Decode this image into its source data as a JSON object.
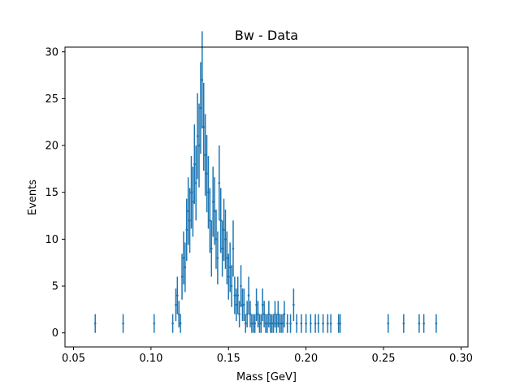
{
  "chart_data": {
    "type": "scatter",
    "title": "Bw - Data",
    "xlabel": "Mass [GeV]",
    "ylabel": "Events",
    "xlim": [
      0.0445,
      0.3045
    ],
    "ylim": [
      -1.5,
      30.5
    ],
    "xticks": [
      "0.05",
      "0.10",
      "0.15",
      "0.20",
      "0.25",
      "0.30"
    ],
    "xtick_values": [
      0.05,
      0.1,
      0.15,
      0.2,
      0.25,
      0.3
    ],
    "yticks": [
      "0",
      "5",
      "10",
      "15",
      "20",
      "25",
      "30"
    ],
    "ytick_values": [
      0,
      5,
      10,
      15,
      20,
      25,
      30
    ],
    "grid": false,
    "error_bars": "sqrt(N)",
    "series_color": "#1f77b4",
    "series": [
      {
        "x": [
          0.064,
          0.082,
          0.102,
          0.114,
          0.116,
          0.117,
          0.118,
          0.119,
          0.12,
          0.121,
          0.122,
          0.123,
          0.124,
          0.125,
          0.126,
          0.127,
          0.128,
          0.129,
          0.13,
          0.131,
          0.132,
          0.133,
          0.134,
          0.135,
          0.136,
          0.137,
          0.138,
          0.139,
          0.14,
          0.141,
          0.142,
          0.143,
          0.144,
          0.145,
          0.146,
          0.147,
          0.148,
          0.149,
          0.15,
          0.151,
          0.152,
          0.153,
          0.154,
          0.155,
          0.156,
          0.157,
          0.158,
          0.159,
          0.16,
          0.161,
          0.162,
          0.163,
          0.164,
          0.165,
          0.166,
          0.167,
          0.168,
          0.169,
          0.17,
          0.171,
          0.172,
          0.173,
          0.174,
          0.175,
          0.176,
          0.177,
          0.178,
          0.179,
          0.18,
          0.181,
          0.182,
          0.183,
          0.184,
          0.185,
          0.186,
          0.188,
          0.19,
          0.192,
          0.194,
          0.197,
          0.2,
          0.203,
          0.206,
          0.208,
          0.211,
          0.214,
          0.216,
          0.221,
          0.222,
          0.253,
          0.263,
          0.273,
          0.276,
          0.284
        ],
        "y": [
          1,
          1,
          1,
          1,
          3,
          4,
          2,
          1,
          6,
          8,
          7,
          11,
          13,
          12,
          15,
          14,
          18,
          16,
          21,
          20,
          24,
          27,
          22,
          19,
          17,
          15,
          12,
          9,
          14,
          13,
          10,
          8,
          16,
          12,
          9,
          11,
          10,
          8,
          6,
          7,
          5,
          9,
          4,
          3,
          4,
          2,
          5,
          3,
          3,
          1,
          2,
          4,
          2,
          1,
          1,
          1,
          3,
          2,
          1,
          1,
          3,
          2,
          1,
          1,
          2,
          1,
          1,
          1,
          2,
          1,
          2,
          1,
          1,
          1,
          2,
          1,
          1,
          3,
          1,
          1,
          1,
          1,
          1,
          1,
          1,
          1,
          1,
          1,
          1,
          1,
          1,
          1,
          1,
          1
        ]
      }
    ]
  }
}
